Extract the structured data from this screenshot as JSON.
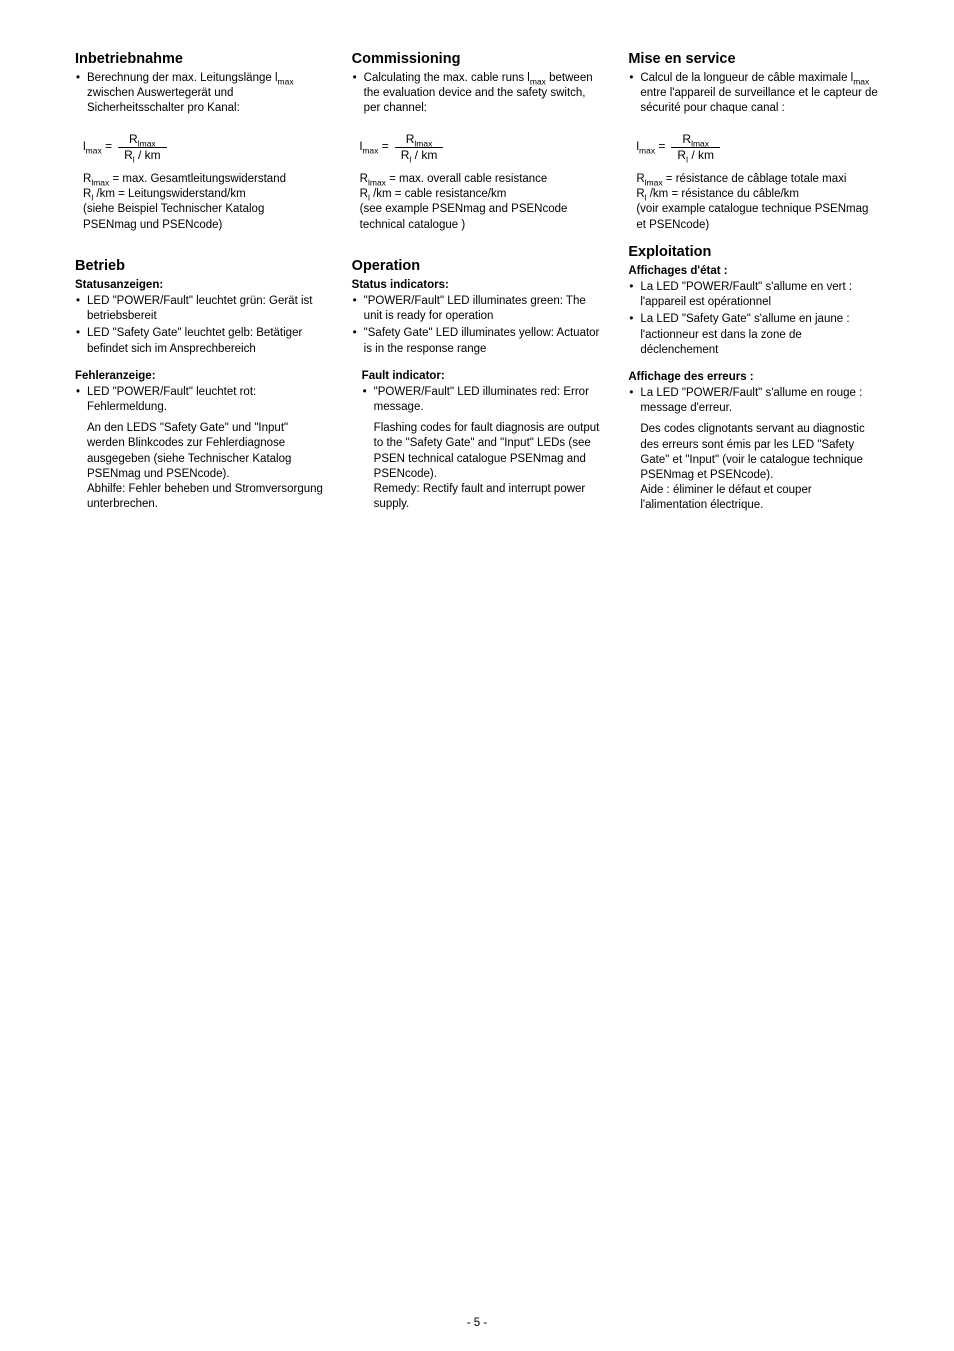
{
  "pageNumber": "- 5 -",
  "de": {
    "sec1_title": "Inbetriebnahme",
    "sec1_bullet": "Berechnung der max. Leitungslänge l",
    "sec1_bullet_sub": "max",
    "sec1_bullet_cont": " zwischen Auswertegerät und Sicherheitsschalter pro Kanal:",
    "formula_l": "l",
    "formula_l_sub": "max",
    "formula_eq": " = ",
    "formula_num_R": "R",
    "formula_num_sub": "lmax",
    "formula_den_R": "R",
    "formula_den_sub": "l",
    "formula_den_rest": " / km",
    "def1_R": "R",
    "def1_sub": "lmax",
    "def1_rest": " = max. Gesamtleitungswiderstand",
    "def2_R": "R",
    "def2_sub": "l",
    "def2_rest": " /km = Leitungswiderstand/km",
    "def3": "(siehe Beispiel Technischer Katalog PSENmag und PSENcode)",
    "sec2_title": "Betrieb",
    "sec2_sub": "Statusanzeigen:",
    "sec2_b1": "LED \"POWER/Fault\" leuchtet grün: Gerät ist betriebsbereit",
    "sec2_b2": "LED \"Safety Gate\" leuchtet gelb: Betätiger befindet sich im Ansprechbereich",
    "sec3_sub": "Fehleranzeige:",
    "sec3_b1": "LED \"POWER/Fault\" leuchtet rot: Fehlermeldung.",
    "sec3_p1": "An den LEDS \"Safety Gate\" und \"Input\" werden Blinkcodes zur Fehlerdiagnose ausgegeben (siehe Technischer Katalog PSENmag und PSENcode).",
    "sec3_p2": "Abhilfe: Fehler beheben und Stromversorgung unterbrechen."
  },
  "en": {
    "sec1_title": "Commissioning",
    "sec1_bullet": "Calculating the max. cable runs l",
    "sec1_bullet_sub": "max",
    "sec1_bullet_cont": " between the evaluation device and the safety switch, per channel:",
    "def1_R": "R",
    "def1_sub": "lmax",
    "def1_rest": " = max. overall cable resistance",
    "def2_R": "R",
    "def2_sub": "l",
    "def2_rest": " /km = cable resistance/km",
    "def3": "(see example PSENmag and PSENcode technical catalogue )",
    "sec2_title": "Operation",
    "sec2_sub": "Status indicators:",
    "sec2_b1": "\"POWER/Fault\" LED illuminates green: The unit is ready for operation",
    "sec2_b2": "\"Safety Gate\" LED illuminates yellow: Actuator is in the response range",
    "sec3_sub": "Fault indicator:",
    "sec3_b1": "\"POWER/Fault\" LED illuminates red: Error message.",
    "sec3_p1": "Flashing codes for fault diagnosis are output to the \"Safety Gate\" and \"Input\" LEDs (see PSEN technical catalogue PSENmag and PSENcode).",
    "sec3_p2": "Remedy: Rectify fault and interrupt power supply."
  },
  "fr": {
    "sec1_title": "Mise en service",
    "sec1_bullet": "Calcul de la longueur de câble maximale l",
    "sec1_bullet_sub": "max",
    "sec1_bullet_cont": " entre l'appareil de surveillance et le capteur de sécurité pour chaque canal :",
    "def1_R": "R",
    "def1_sub": "lmax",
    "def1_rest": " = résistance de câblage totale maxi",
    "def2_R": "R",
    "def2_sub": "l",
    "def2_rest": " /km = résistance du câble/km",
    "def3": "(voir example catalogue technique PSENmag et PSENcode)",
    "sec2_title": "Exploitation",
    "sec2_sub": "Affichages d'état :",
    "sec2_b1": "La LED \"POWER/Fault\" s'allume en vert : l'appareil est opérationnel",
    "sec2_b2": "La LED \"Safety Gate\" s'allume en jaune : l'actionneur est dans la zone de déclenchement",
    "sec3_sub": "Affichage des erreurs :",
    "sec3_b1": "La LED \"POWER/Fault\" s'allume en rouge : message d'erreur.",
    "sec3_p1": "Des codes clignotants servant au diagnostic des erreurs sont émis par les LED \"Safety Gate\" et \"Input\" (voir le catalogue technique PSENmag et PSENcode).",
    "sec3_p2": "Aide : éliminer le défaut et couper l'alimentation électrique."
  }
}
